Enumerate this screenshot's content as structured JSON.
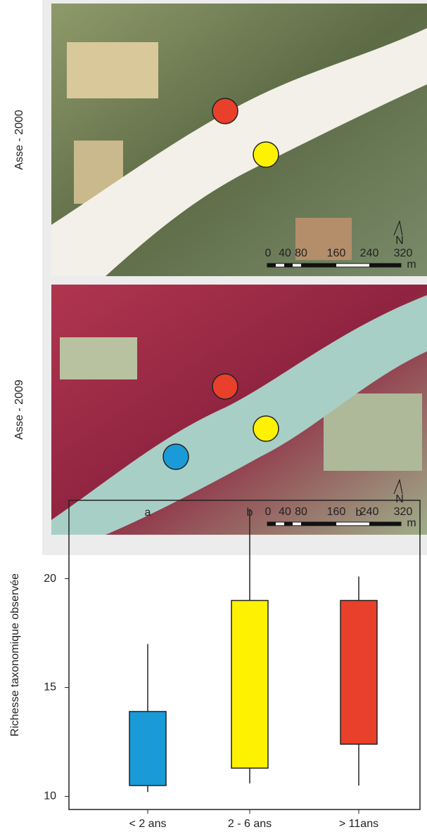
{
  "maps": [
    {
      "label": "Asse - 2000",
      "scale_labels": [
        "0",
        "40",
        "80",
        "160",
        "240",
        "320"
      ],
      "unit": "m",
      "north": "N"
    },
    {
      "label": "Asse - 2009",
      "scale_labels": [
        "0",
        "40",
        "80",
        "160",
        "240",
        "320"
      ],
      "unit": "m",
      "north": "N"
    }
  ],
  "chart_data": {
    "type": "box",
    "y_label": "Richesse taxonomique observée",
    "categories": [
      "< 2 ans",
      "2 - 6 ans",
      "> 11ans"
    ],
    "group_labels": [
      "a",
      "b",
      "b"
    ],
    "colors": [
      "#1a9ad6",
      "#fff200",
      "#e8402a"
    ],
    "whisker_low": [
      10.2,
      10.6,
      10.5
    ],
    "q1": [
      10.5,
      11.3,
      12.4
    ],
    "q3": [
      13.9,
      19,
      19
    ],
    "whisker_high": [
      17,
      23.2,
      20.1
    ],
    "ylim": [
      9.4,
      23.6
    ],
    "yticks": [
      10,
      15,
      20
    ]
  }
}
